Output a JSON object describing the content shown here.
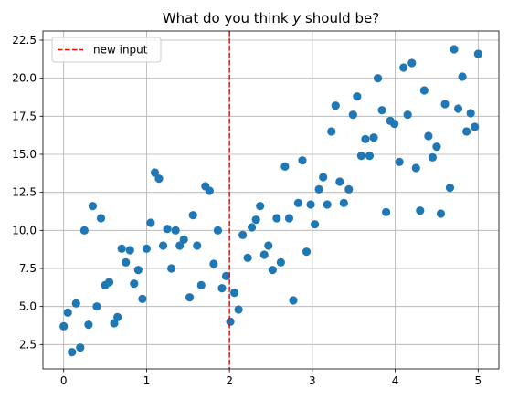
{
  "chart_data": {
    "type": "scatter",
    "title": "What do you think y should be?",
    "xlabel": "",
    "ylabel": "",
    "xlim": [
      -0.25,
      5.25
    ],
    "ylim": [
      0.9,
      23.1
    ],
    "x_ticks": [
      0,
      1,
      2,
      3,
      4,
      5
    ],
    "x_tick_labels": [
      "0",
      "1",
      "2",
      "3",
      "4",
      "5"
    ],
    "y_ticks": [
      2.5,
      5.0,
      7.5,
      10.0,
      12.5,
      15.0,
      17.5,
      20.0,
      22.5
    ],
    "y_tick_labels": [
      "2.5",
      "5.0",
      "7.5",
      "10.0",
      "12.5",
      "15.0",
      "17.5",
      "20.0",
      "22.5"
    ],
    "grid": true,
    "legend_position": "top-left",
    "point_color": "#1f77b4",
    "series": [
      {
        "x": [
          0.0,
          0.05,
          0.1,
          0.15,
          0.2,
          0.25,
          0.3,
          0.35,
          0.4,
          0.45,
          0.5,
          0.55,
          0.61,
          0.65,
          0.7,
          0.75,
          0.8,
          0.85,
          0.9,
          0.95,
          1.0,
          1.05,
          1.1,
          1.15,
          1.2,
          1.25,
          1.3,
          1.35,
          1.4,
          1.45,
          1.52,
          1.56,
          1.61,
          1.66,
          1.71,
          1.76,
          1.81,
          1.86,
          1.91,
          1.96,
          2.01,
          2.06,
          2.11,
          2.16,
          2.22,
          2.27,
          2.32,
          2.37,
          2.42,
          2.47,
          2.52,
          2.57,
          2.62,
          2.67,
          2.72,
          2.77,
          2.83,
          2.88,
          2.93,
          2.98,
          3.03,
          3.08,
          3.13,
          3.18,
          3.23,
          3.28,
          3.33,
          3.38,
          3.44,
          3.49,
          3.54,
          3.59,
          3.64,
          3.69,
          3.74,
          3.79,
          3.84,
          3.89,
          3.94,
          3.99,
          4.05,
          4.1,
          4.15,
          4.2,
          4.25,
          4.3,
          4.35,
          4.4,
          4.45,
          4.5,
          4.55,
          4.6,
          4.66,
          4.71,
          4.76,
          4.81,
          4.86,
          4.91,
          4.96,
          5.0
        ],
        "y": [
          3.7,
          4.6,
          2.0,
          5.2,
          2.3,
          10.0,
          3.8,
          11.6,
          5.0,
          10.8,
          6.4,
          6.6,
          3.9,
          4.3,
          8.8,
          7.9,
          8.7,
          6.5,
          7.4,
          5.5,
          8.8,
          10.5,
          13.8,
          13.4,
          9.0,
          10.1,
          7.5,
          10.0,
          9.0,
          9.4,
          5.6,
          11.0,
          9.0,
          6.4,
          12.9,
          12.6,
          7.8,
          10.0,
          6.2,
          7.0,
          4.0,
          5.9,
          4.8,
          9.7,
          8.2,
          10.2,
          10.7,
          11.6,
          8.4,
          9.0,
          7.4,
          10.8,
          7.9,
          14.2,
          10.8,
          5.4,
          11.8,
          14.6,
          8.6,
          11.7,
          10.4,
          12.7,
          13.5,
          11.7,
          16.5,
          18.2,
          13.2,
          11.8,
          12.7,
          17.6,
          18.8,
          14.9,
          16.0,
          14.9,
          16.1,
          20.0,
          17.9,
          11.2,
          17.2,
          17.0,
          14.5,
          20.7,
          17.6,
          21.0,
          14.1,
          11.3,
          19.2,
          16.2,
          14.8,
          15.5,
          11.1,
          18.3,
          12.8,
          21.9,
          18.0,
          20.1,
          16.5,
          17.7,
          16.8,
          21.6
        ]
      }
    ],
    "vline": {
      "x": 2.0,
      "color": "#ff0000",
      "style": "dashed",
      "label": "new input"
    }
  }
}
